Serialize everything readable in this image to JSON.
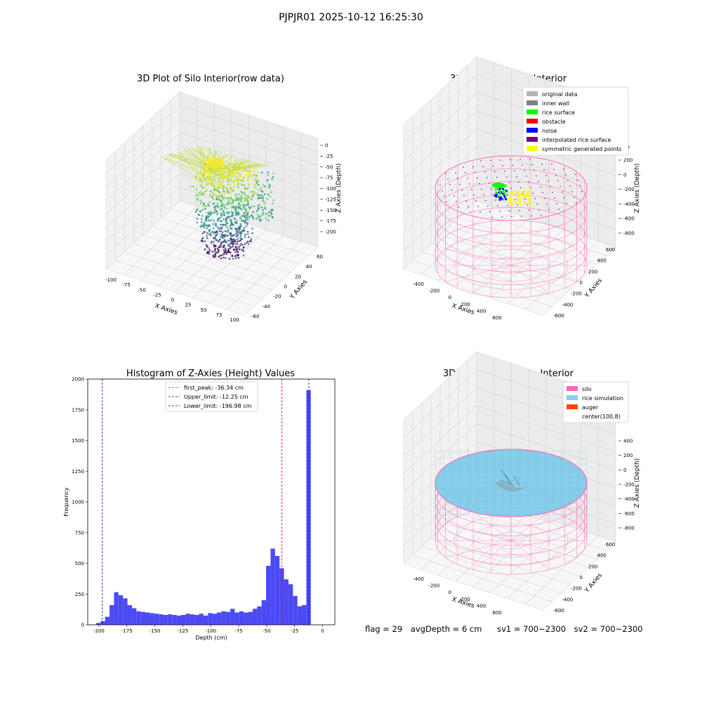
{
  "figure_title": "PJPJR01 2025-10-12 16:25:30",
  "info_line": {
    "flag": "flag = 29",
    "avg_depth": "avgDepth = 6 cm",
    "sv1": "sv1 = 700~2300",
    "sv2": "sv2 = 700~2300"
  },
  "colors": {
    "hist_fill": "#4b4bf5",
    "first_peak_line": "#ff0000",
    "limit_lines": "#0000cc",
    "silo": "#ff69b4",
    "rice_simulation": "#87ceeb",
    "auger": "#ff4500",
    "rice_surface": "#00ff00",
    "symmetric_points": "#ffff00"
  },
  "chart_data": [
    {
      "type": "scatter",
      "title": "3D Plot of Silo Interior(row data)",
      "xlabel": "X Axies",
      "ylabel": "Y Axies",
      "zlabel": "Z Axies (Depth)",
      "x_ticks": [
        "-100",
        "-75",
        "-50",
        "-25",
        "0",
        "25",
        "50",
        "75",
        "100"
      ],
      "y_ticks": [
        "-60",
        "-40",
        "-20",
        "0",
        "20",
        "40",
        "60"
      ],
      "z_ticks": [
        "0",
        "-25",
        "-50",
        "-75",
        "-100",
        "-125",
        "-150",
        "-175",
        "-200"
      ],
      "xlim": [
        -100,
        100
      ],
      "ylim": [
        -60,
        60
      ],
      "zlim": [
        -200,
        0
      ],
      "colormap": "viridis",
      "grid": true
    },
    {
      "type": "scatter",
      "title": "3D classify of Silo Interior",
      "xlabel": "X Axies",
      "ylabel": "Y Axies",
      "zlabel": "Z Axies (Depth)",
      "x_ticks": [
        "-400",
        "-200",
        "0",
        "200",
        "400",
        "600"
      ],
      "y_ticks": [
        "-600",
        "-400",
        "-200",
        "0",
        "200",
        "400",
        "600"
      ],
      "z_ticks": [
        "200",
        "0",
        "-200",
        "-400",
        "-600",
        "-800"
      ],
      "z_top_partial": "00",
      "legend_position": "top-right",
      "legend": [
        {
          "label": "original data",
          "color": "#b3b3b3"
        },
        {
          "label": "inner wall",
          "color": "#808080"
        },
        {
          "label": "rice surface",
          "color": "#00ff00"
        },
        {
          "label": "obstacle",
          "color": "#ff0000"
        },
        {
          "label": "noise",
          "color": "#0000ff"
        },
        {
          "label": "interpolated rice surface",
          "color": "#800080"
        },
        {
          "label": "symmetric generated points",
          "color": "#ffff00"
        }
      ],
      "grid": true
    },
    {
      "type": "bar",
      "title": "Histogram of Z-Axies (Height) Values",
      "xlabel": "Depth (cm)",
      "ylabel": "Frequency",
      "xlim": [
        -210,
        11
      ],
      "ylim": [
        0,
        2000
      ],
      "x_ticks": [
        -200,
        -175,
        -150,
        -125,
        -100,
        -75,
        -50,
        -25,
        0
      ],
      "y_ticks": [
        0,
        250,
        500,
        750,
        1000,
        1250,
        1500,
        1750,
        2000
      ],
      "bin_start": -202.5,
      "bin_width": 4.0,
      "values": [
        15,
        30,
        65,
        160,
        265,
        240,
        215,
        160,
        135,
        110,
        105,
        100,
        95,
        90,
        85,
        80,
        85,
        80,
        75,
        80,
        90,
        85,
        80,
        90,
        75,
        95,
        90,
        100,
        110,
        105,
        130,
        100,
        110,
        100,
        105,
        130,
        150,
        200,
        480,
        620,
        560,
        460,
        370,
        330,
        235,
        150,
        160,
        1910
      ],
      "vlines": [
        {
          "label": "first_peak: -36.34 cm",
          "x": -36.34,
          "color": "#ff0000"
        },
        {
          "label": "Upper_limit: -12.25 cm",
          "x": -12.25,
          "color": "#0000cc"
        },
        {
          "label": "Lower_limit: -196.98 cm",
          "x": -196.98,
          "color": "#0000cc"
        }
      ],
      "legend_position": "top-center",
      "grid": false
    },
    {
      "type": "scatter",
      "title": "3D simulation of Silo Interior",
      "xlabel": "X Axies",
      "ylabel": "Y Axies",
      "zlabel": "Z Axies (Depth)",
      "x_ticks": [
        "-400",
        "-200",
        "0",
        "200",
        "400",
        "600"
      ],
      "y_ticks": [
        "-600",
        "-400",
        "-200",
        "0",
        "200",
        "400",
        "600"
      ],
      "z_ticks": [
        "400",
        "200",
        "0",
        "-200",
        "-400",
        "-600",
        "-800"
      ],
      "legend_position": "top-right",
      "legend": [
        {
          "label": "silo",
          "color": "#ff69b4"
        },
        {
          "label": "rice simulation",
          "color": "#87ceeb"
        },
        {
          "label": "auger",
          "color": "#ff4500"
        },
        {
          "label": "center(100,8)",
          "color": "#ffffff"
        }
      ],
      "grid": true
    }
  ]
}
